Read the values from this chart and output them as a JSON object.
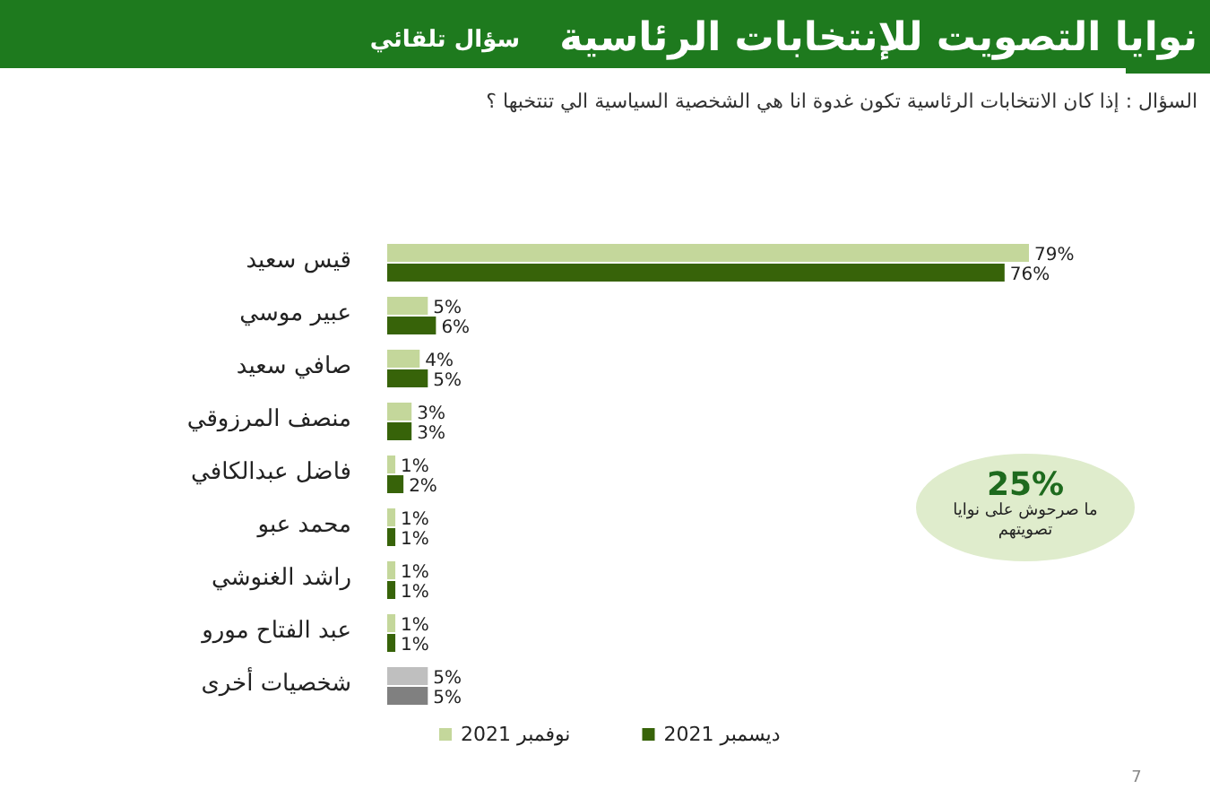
{
  "chart_data": {
    "type": "bar",
    "orientation": "horizontal",
    "title": "نوايا التصويت للإنتخابات الرئاسية",
    "subtitle": "السؤال : إذا كان الانتخابات الرئاسية تكون غدوة انا هي الشخصية السياسية الي تنتخبها ؟",
    "categories": [
      "قيس سعيد",
      "عبير موسي",
      "صافي سعيد",
      "منصف المرزوقي",
      "فاضل عبدالكافي",
      "محمد عبو",
      "راشد الغنوشي",
      "عبد الفتاح مورو",
      "شخصيات أخرى"
    ],
    "series": [
      {
        "name": "نوفمبر 2021",
        "color": "#c4d79b",
        "colors": [
          "#c4d79b",
          "#c4d79b",
          "#c4d79b",
          "#c4d79b",
          "#c4d79b",
          "#c4d79b",
          "#c4d79b",
          "#c4d79b",
          "#bfbfbf"
        ],
        "values": [
          79,
          5,
          4,
          3,
          1,
          1,
          1,
          1,
          5
        ],
        "value_labels": [
          "79%",
          "5%",
          "4%",
          "3%",
          "1%",
          "1%",
          "1%",
          "1%",
          "5%"
        ]
      },
      {
        "name": "ديسمبر 2021",
        "color": "#376309",
        "colors": [
          "#376309",
          "#376309",
          "#376309",
          "#376309",
          "#376309",
          "#376309",
          "#376309",
          "#376309",
          "#808080"
        ],
        "values": [
          76,
          6,
          5,
          3,
          2,
          1,
          1,
          1,
          5
        ],
        "value_labels": [
          "76%",
          "6%",
          "5%",
          "3%",
          "2%",
          "1%",
          "1%",
          "1%",
          "5%"
        ]
      }
    ],
    "legend": "bottom",
    "annotations": [
      "سؤال تلقائي",
      "25%",
      "ما صرحوش على نوايا تصويتهم",
      "7"
    ]
  }
}
